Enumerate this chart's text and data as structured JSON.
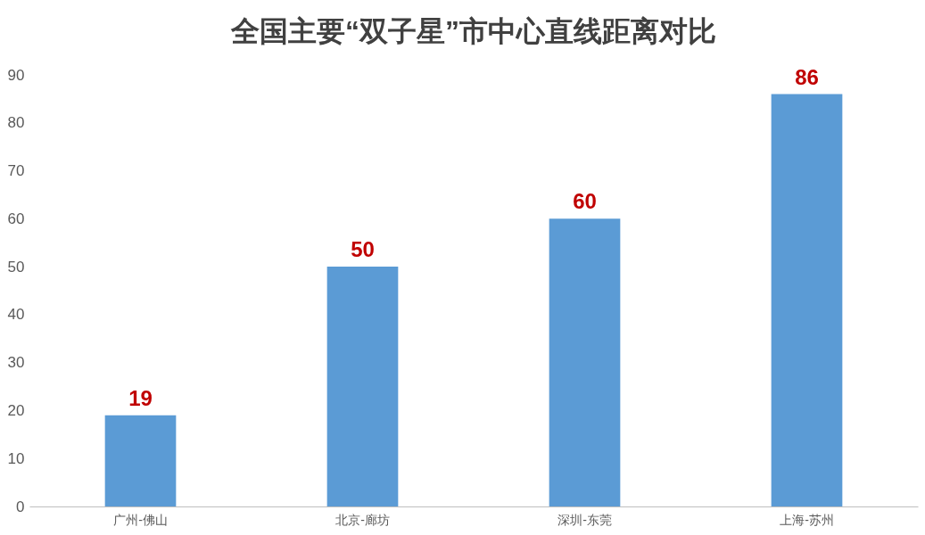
{
  "chart_data": {
    "type": "bar",
    "title": "全国主要“双子星”市中心直线距离对比",
    "categories": [
      "广州-佛山",
      "北京-廊坊",
      "深圳-东莞",
      "上海-苏州"
    ],
    "values": [
      19,
      50,
      60,
      86
    ],
    "color": "#5b9bd5",
    "ylim": [
      0,
      90
    ],
    "yticks": [
      0,
      10,
      20,
      30,
      40,
      50,
      60,
      70,
      80,
      90
    ],
    "grid": false,
    "data_labels": true
  }
}
